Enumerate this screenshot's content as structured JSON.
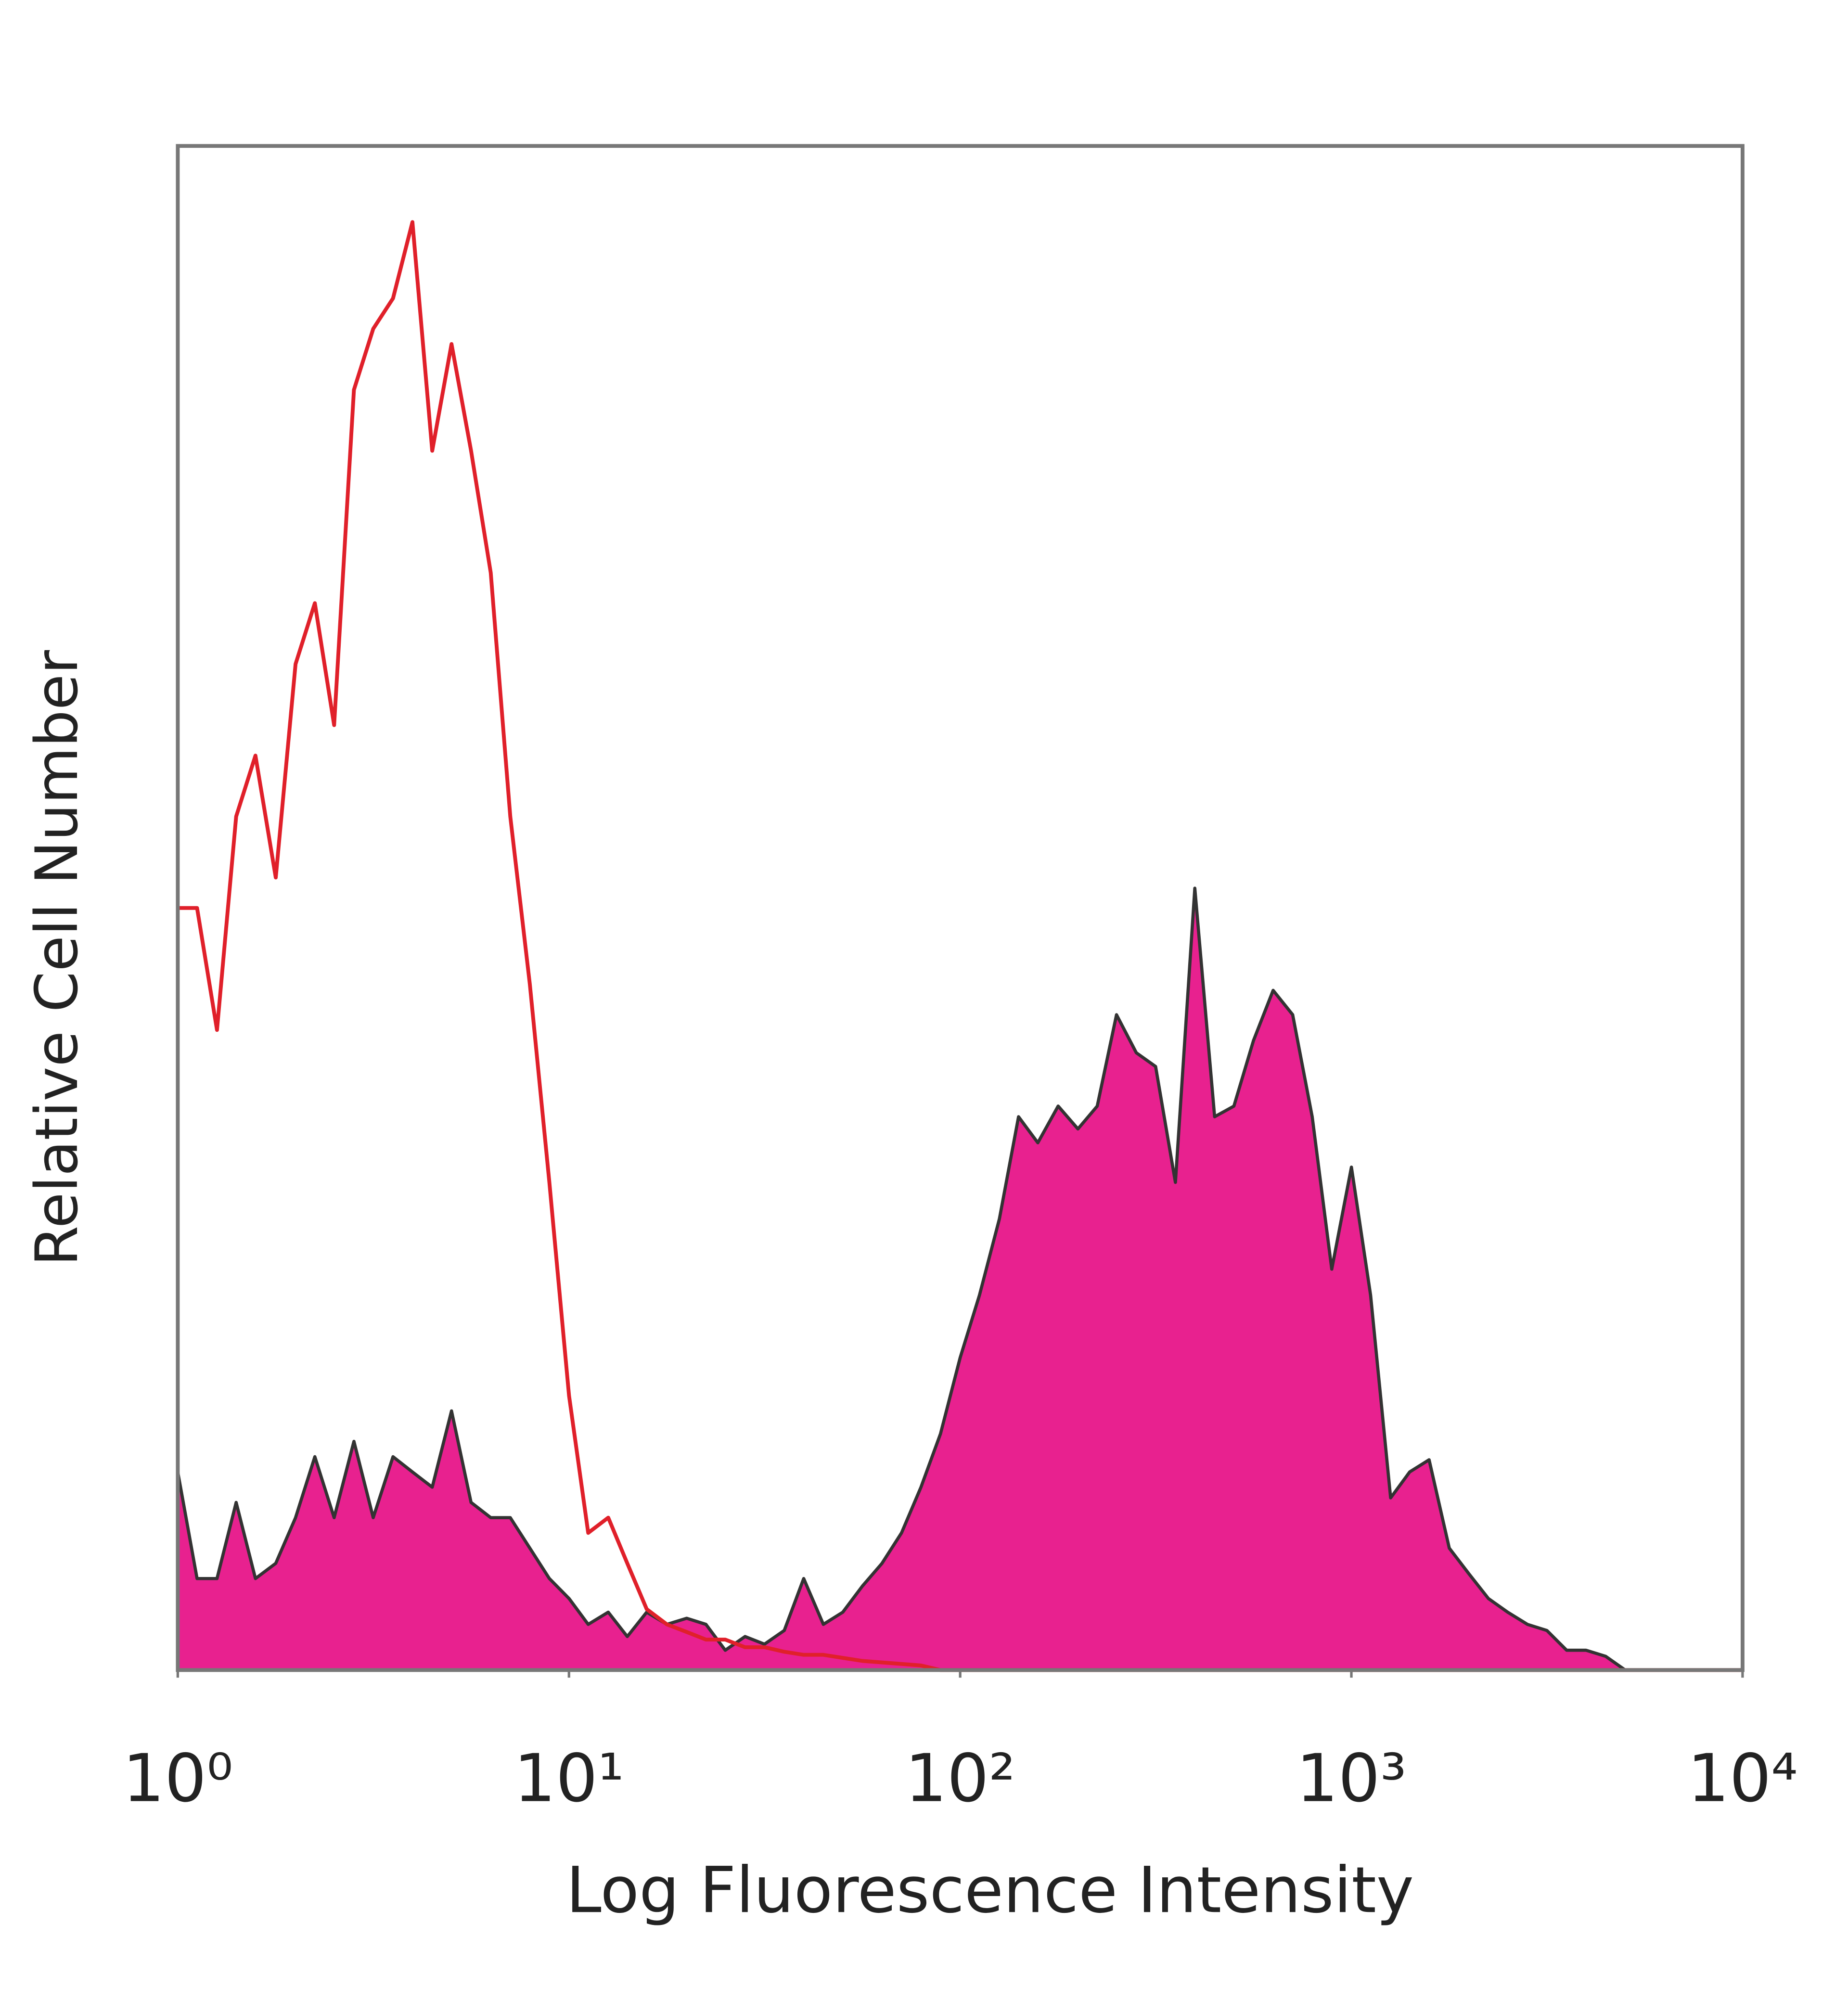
{
  "chart_data": {
    "type": "area",
    "xlabel": "Log Fluorescence Intensity",
    "ylabel": "Relative Cell Number",
    "xscale": "log",
    "xlim": [
      1,
      10000
    ],
    "ylim": [
      0,
      100
    ],
    "grid": false,
    "xticks": [
      {
        "value": 1,
        "label": "10⁰"
      },
      {
        "value": 10,
        "label": "10¹"
      },
      {
        "value": 100,
        "label": "10²"
      },
      {
        "value": 1000,
        "label": "10³"
      },
      {
        "value": 10000,
        "label": "10⁴"
      }
    ],
    "x": [
      1,
      1.12,
      1.26,
      1.41,
      1.58,
      1.78,
      2,
      2.24,
      2.51,
      2.82,
      3.16,
      3.55,
      3.98,
      4.47,
      5.01,
      5.62,
      6.31,
      7.08,
      7.94,
      8.91,
      10,
      11.2,
      12.6,
      14.1,
      15.8,
      17.8,
      20,
      22.4,
      25.1,
      28.2,
      31.6,
      35.5,
      39.8,
      44.7,
      50.1,
      56.2,
      63.1,
      70.8,
      79.4,
      89.1,
      100,
      112,
      126,
      141,
      158,
      178,
      200,
      224,
      251,
      282,
      316,
      355,
      398,
      447,
      501,
      562,
      631,
      708,
      794,
      891,
      1000,
      1120,
      1260,
      1410,
      1580,
      1780,
      2000,
      2240,
      2510,
      2820,
      3160,
      3550,
      3980,
      4470,
      5010,
      5620,
      6310,
      7080,
      7940,
      8910,
      10000
    ],
    "series": [
      {
        "color": "#e8218f",
        "outline": "#333333",
        "fill": true,
        "values": [
          13,
          6,
          6,
          11,
          6,
          7,
          10,
          14,
          10,
          15,
          10,
          14,
          13,
          12,
          17,
          11,
          10,
          10,
          8,
          6,
          4.7,
          3,
          3.8,
          2.2,
          3.8,
          3,
          3.4,
          3,
          1.3,
          2.2,
          1.7,
          2.6,
          6,
          3,
          3.8,
          5.5,
          7,
          9,
          12,
          15.5,
          20.5,
          24.6,
          29.6,
          36.3,
          34.6,
          37,
          35.5,
          37,
          43,
          40.5,
          39.6,
          32,
          51.3,
          36.3,
          37,
          41.3,
          44.6,
          43,
          36.3,
          26.3,
          33,
          24.6,
          11.3,
          13,
          13.8,
          8,
          6.3,
          4.7,
          3.8,
          3,
          2.6,
          1.3,
          1.3,
          0.9,
          0,
          0,
          0,
          0,
          0,
          0,
          0
        ]
      },
      {
        "color": "#e0202a",
        "fill": false,
        "values": [
          50,
          50,
          42,
          56,
          60,
          52,
          66,
          70,
          62,
          84,
          88,
          90,
          95,
          80,
          87,
          80,
          72,
          56,
          45,
          32,
          18,
          9,
          10,
          7,
          4,
          3,
          2.5,
          2,
          2,
          1.5,
          1.5,
          1.2,
          1,
          1,
          0.8,
          0.6,
          0.5,
          0.4,
          0.3,
          0,
          0,
          0,
          0,
          0,
          0,
          0,
          0,
          0,
          0,
          0,
          0,
          0,
          0,
          0,
          0,
          0,
          0,
          0,
          0,
          0,
          0,
          0,
          0,
          0,
          0,
          0,
          0,
          0,
          0,
          0,
          0,
          0,
          0,
          0,
          0,
          0,
          0,
          0,
          0,
          0,
          0
        ]
      }
    ]
  }
}
